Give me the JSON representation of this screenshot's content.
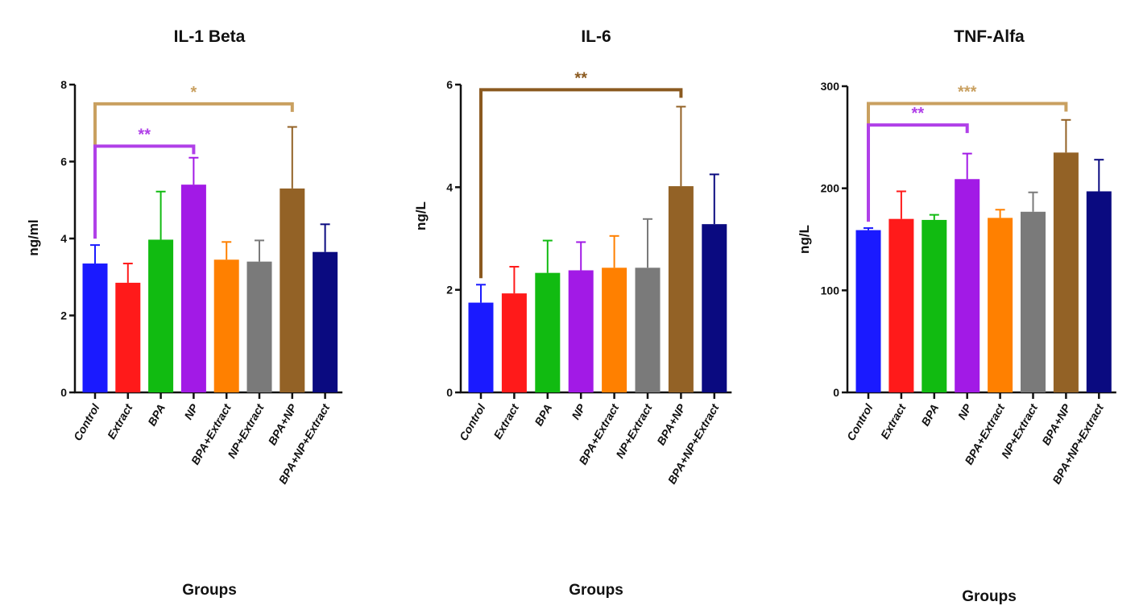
{
  "colors": {
    "Control": "#1a1aff",
    "Extract": "#ff1a1a",
    "BPA": "#11bb11",
    "NP": "#a21ae6",
    "BPA+Extract": "#ff8000",
    "NP+Extract": "#7a7a7a",
    "BPA+NP": "#936226",
    "BPA+NP+Extract": "#0a0a80",
    "sig_gold": "#c9a060",
    "sig_brown": "#8b5a20",
    "sig_purple": "#b040e8",
    "axis": "#111111"
  },
  "chart_data": [
    {
      "type": "bar",
      "title": "IL-1 Beta",
      "xlabel": "Groups",
      "ylabel": "ng/ml",
      "ylim": [
        0,
        8
      ],
      "yticks": [
        0,
        2,
        4,
        6,
        8
      ],
      "categories": [
        "Control",
        "Extract",
        "BPA",
        "NP",
        "BPA+Extract",
        "NP+Extract",
        "BPA+NP",
        "BPA+NP+Extract"
      ],
      "values": [
        3.35,
        2.85,
        3.97,
        5.4,
        3.45,
        3.4,
        5.3,
        3.65
      ],
      "errors": [
        0.48,
        0.5,
        1.25,
        0.7,
        0.46,
        0.55,
        1.6,
        0.72
      ],
      "significance": [
        {
          "from": "Control",
          "to": "BPA+NP",
          "label": "*",
          "color": "#c9a060",
          "level": 7.5
        },
        {
          "from": "Control",
          "to": "NP",
          "label": "**",
          "color": "#b040e8",
          "level": 6.4
        }
      ]
    },
    {
      "type": "bar",
      "title": "IL-6",
      "xlabel": "",
      "ylabel": "ng/L",
      "ylim": [
        0,
        6
      ],
      "yticks": [
        0,
        2,
        4,
        6
      ],
      "categories": [
        "Control",
        "Extract",
        "BPA",
        "NP",
        "BPA+Extract",
        "NP+Extract",
        "BPA+NP",
        "BPA+NP+Extract"
      ],
      "values": [
        1.75,
        1.93,
        2.33,
        2.38,
        2.43,
        2.43,
        4.02,
        3.28
      ],
      "errors": [
        0.35,
        0.52,
        0.63,
        0.55,
        0.62,
        0.95,
        1.55,
        0.97
      ],
      "significance": [
        {
          "from": "Control",
          "to": "BPA+NP",
          "label": "**",
          "color": "#8b5a20",
          "level": 5.9
        }
      ]
    },
    {
      "type": "bar",
      "title": "TNF-Alfa",
      "xlabel": "Groups",
      "ylabel": "ng/L",
      "ylim": [
        0,
        300
      ],
      "yticks": [
        0,
        100,
        200,
        300
      ],
      "categories": [
        "Control",
        "Extract",
        "BPA",
        "NP",
        "BPA+Extract",
        "NP+Extract",
        "BPA+NP",
        "BPA+NP+Extract"
      ],
      "values": [
        159,
        170,
        169,
        209,
        171,
        177,
        235,
        197
      ],
      "errors": [
        2,
        27,
        5,
        25,
        8,
        19,
        32,
        31
      ],
      "significance": [
        {
          "from": "Control",
          "to": "BPA+NP",
          "label": "***",
          "color": "#c9a060",
          "level": 283
        },
        {
          "from": "Control",
          "to": "NP",
          "label": "**",
          "color": "#b040e8",
          "level": 262
        }
      ]
    }
  ],
  "footer_labels": [
    "Groups",
    "Groups",
    "Groups"
  ]
}
